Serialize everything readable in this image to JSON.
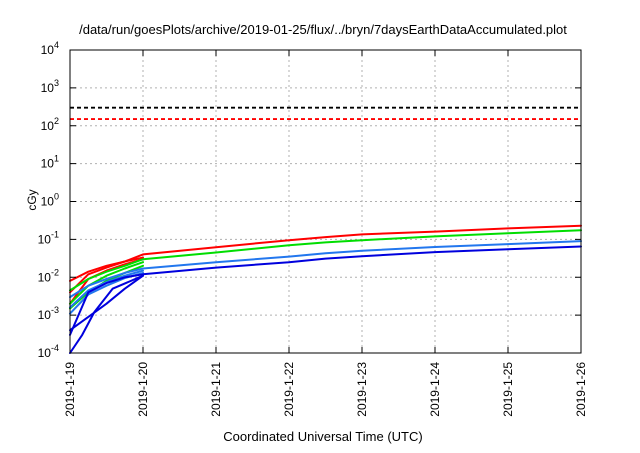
{
  "chart_data": {
    "type": "line",
    "title": "/data/run/goesPlots/archive/2019-01-25/flux/../bryn/7daysEarthDataAccumulated.plot",
    "xlabel": "Coordinated Universal Time (UTC)",
    "ylabel": "cGy",
    "x_scale": "date",
    "y_scale": "log",
    "xlim": [
      "2019-1-19",
      "2019-1-26"
    ],
    "ylim": [
      0.0001,
      10000
    ],
    "x_ticks": [
      "2019-1-19",
      "2019-1-20",
      "2019-1-21",
      "2019-1-22",
      "2019-1-23",
      "2019-1-24",
      "2019-1-25",
      "2019-1-26"
    ],
    "y_ticks": [
      {
        "value": 0.0001,
        "mantissa": "10",
        "exponent": "-4"
      },
      {
        "value": 0.001,
        "mantissa": "10",
        "exponent": "-3"
      },
      {
        "value": 0.01,
        "mantissa": "10",
        "exponent": "-2"
      },
      {
        "value": 0.1,
        "mantissa": "10",
        "exponent": "-1"
      },
      {
        "value": 1,
        "mantissa": "10",
        "exponent": "0"
      },
      {
        "value": 10,
        "mantissa": "10",
        "exponent": "1"
      },
      {
        "value": 100,
        "mantissa": "10",
        "exponent": "2"
      },
      {
        "value": 1000,
        "mantissa": "10",
        "exponent": "3"
      },
      {
        "value": 10000,
        "mantissa": "10",
        "exponent": "4"
      }
    ],
    "grid": true,
    "reference_lines": [
      {
        "value": 300,
        "color": "#000000",
        "style": "dashed"
      },
      {
        "value": 150,
        "color": "#ff0000",
        "style": "dashed"
      }
    ],
    "series": [
      {
        "color": "#ff0000",
        "points": [
          [
            "2019-1-19 00:00",
            0.008
          ],
          [
            "2019-1-19 06:00",
            0.014
          ],
          [
            "2019-1-19 12:00",
            0.02
          ],
          [
            "2019-1-19 18:00",
            0.026
          ],
          [
            "2019-1-20 00:00",
            0.04
          ],
          [
            "2019-1-21 00:00",
            0.062
          ],
          [
            "2019-1-22 00:00",
            0.095
          ],
          [
            "2019-1-22 12:00",
            0.115
          ],
          [
            "2019-1-23 00:00",
            0.135
          ],
          [
            "2019-1-24 00:00",
            0.16
          ],
          [
            "2019-1-25 00:00",
            0.195
          ],
          [
            "2019-1-26 00:00",
            0.23
          ]
        ]
      },
      {
        "color": "#ff0000",
        "points": [
          [
            "2019-1-19 00:00",
            0.004
          ],
          [
            "2019-1-19 06:00",
            0.012
          ],
          [
            "2019-1-19 12:00",
            0.018
          ],
          [
            "2019-1-19 18:00",
            0.026
          ],
          [
            "2019-1-20 00:00",
            0.033
          ]
        ]
      },
      {
        "color": "#ff0000",
        "points": [
          [
            "2019-1-19 00:00",
            0.002
          ],
          [
            "2019-1-19 06:00",
            0.009
          ],
          [
            "2019-1-19 12:00",
            0.015
          ],
          [
            "2019-1-19 18:00",
            0.022
          ],
          [
            "2019-1-20 00:00",
            0.03
          ]
        ]
      },
      {
        "color": "#00dd00",
        "points": [
          [
            "2019-1-19 00:00",
            0.0045
          ],
          [
            "2019-1-19 06:00",
            0.009
          ],
          [
            "2019-1-19 12:00",
            0.014
          ],
          [
            "2019-1-19 18:00",
            0.02
          ],
          [
            "2019-1-20 00:00",
            0.03
          ],
          [
            "2019-1-21 00:00",
            0.045
          ],
          [
            "2019-1-22 00:00",
            0.07
          ],
          [
            "2019-1-22 12:00",
            0.083
          ],
          [
            "2019-1-23 00:00",
            0.095
          ],
          [
            "2019-1-24 00:00",
            0.12
          ],
          [
            "2019-1-25 00:00",
            0.145
          ],
          [
            "2019-1-26 00:00",
            0.175
          ]
        ]
      },
      {
        "color": "#00dd00",
        "points": [
          [
            "2019-1-19 00:00",
            0.002
          ],
          [
            "2019-1-19 06:00",
            0.006
          ],
          [
            "2019-1-19 12:00",
            0.011
          ],
          [
            "2019-1-19 18:00",
            0.017
          ],
          [
            "2019-1-20 00:00",
            0.025
          ]
        ]
      },
      {
        "color": "#00dd00",
        "points": [
          [
            "2019-1-19 00:00",
            0.0015
          ],
          [
            "2019-1-19 06:00",
            0.004
          ],
          [
            "2019-1-19 12:00",
            0.008
          ],
          [
            "2019-1-19 18:00",
            0.013
          ],
          [
            "2019-1-20 00:00",
            0.02
          ]
        ]
      },
      {
        "color": "#2277ee",
        "points": [
          [
            "2019-1-19 00:00",
            0.003
          ],
          [
            "2019-1-19 06:00",
            0.006
          ],
          [
            "2019-1-19 12:00",
            0.009
          ],
          [
            "2019-1-19 18:00",
            0.013
          ],
          [
            "2019-1-20 00:00",
            0.017
          ],
          [
            "2019-1-21 00:00",
            0.025
          ],
          [
            "2019-1-22 00:00",
            0.035
          ],
          [
            "2019-1-22 12:00",
            0.043
          ],
          [
            "2019-1-23 00:00",
            0.05
          ],
          [
            "2019-1-24 00:00",
            0.063
          ],
          [
            "2019-1-25 00:00",
            0.075
          ],
          [
            "2019-1-26 00:00",
            0.09
          ]
        ]
      },
      {
        "color": "#2277ee",
        "points": [
          [
            "2019-1-19 00:00",
            0.0016
          ],
          [
            "2019-1-19 06:00",
            0.0045
          ],
          [
            "2019-1-19 12:00",
            0.0075
          ],
          [
            "2019-1-19 18:00",
            0.011
          ],
          [
            "2019-1-20 00:00",
            0.015
          ]
        ]
      },
      {
        "color": "#2277ee",
        "points": [
          [
            "2019-1-19 00:00",
            0.0011
          ],
          [
            "2019-1-19 06:00",
            0.0035
          ],
          [
            "2019-1-19 12:00",
            0.006
          ],
          [
            "2019-1-19 18:00",
            0.0095
          ],
          [
            "2019-1-20 00:00",
            0.013
          ]
        ]
      },
      {
        "color": "#0000dd",
        "points": [
          [
            "2019-1-19 00:00",
            0.0003
          ],
          [
            "2019-1-19 06:00",
            0.004
          ],
          [
            "2019-1-19 12:00",
            0.007
          ],
          [
            "2019-1-19 18:00",
            0.01
          ],
          [
            "2019-1-20 00:00",
            0.012
          ],
          [
            "2019-1-21 00:00",
            0.018
          ],
          [
            "2019-1-22 00:00",
            0.025
          ],
          [
            "2019-1-22 12:00",
            0.031
          ],
          [
            "2019-1-23 00:00",
            0.036
          ],
          [
            "2019-1-24 00:00",
            0.046
          ],
          [
            "2019-1-25 00:00",
            0.055
          ],
          [
            "2019-1-26 00:00",
            0.065
          ]
        ]
      },
      {
        "color": "#0000dd",
        "points": [
          [
            "2019-1-19 00:00",
            0.0004
          ],
          [
            "2019-1-19 06:00",
            0.0009
          ],
          [
            "2019-1-19 12:00",
            0.002
          ],
          [
            "2019-1-19 18:00",
            0.005
          ],
          [
            "2019-1-20 00:00",
            0.011
          ]
        ]
      },
      {
        "color": "#0000dd",
        "points": [
          [
            "2019-1-19 00:00",
            0.0001
          ],
          [
            "2019-1-19 04:00",
            0.0003
          ],
          [
            "2019-1-19 08:00",
            0.0012
          ],
          [
            "2019-1-19 14:00",
            0.005
          ],
          [
            "2019-1-20 00:00",
            0.011
          ]
        ]
      }
    ]
  }
}
